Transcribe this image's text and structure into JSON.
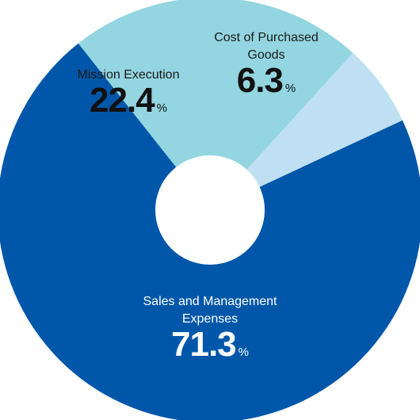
{
  "chart_data": {
    "type": "pie",
    "donut": true,
    "unit": "%",
    "slices": [
      {
        "label": "Sales and Management Expenses",
        "label_lines": [
          "Sales and Management",
          "Expenses"
        ],
        "value": 71.3,
        "value_text": "71.3",
        "color": "#0057a9",
        "text_style": "light"
      },
      {
        "label": "Mission Execution",
        "label_lines": [
          "Mission Execution"
        ],
        "value": 22.4,
        "value_text": "22.4",
        "color": "#93d5e0",
        "text_style": "dark"
      },
      {
        "label": "Cost of Purchased Goods",
        "label_lines": [
          "Cost of Purchased",
          "Goods"
        ],
        "value": 6.3,
        "value_text": "6.3",
        "color": "#bfe0f2",
        "text_style": "dark"
      }
    ]
  }
}
